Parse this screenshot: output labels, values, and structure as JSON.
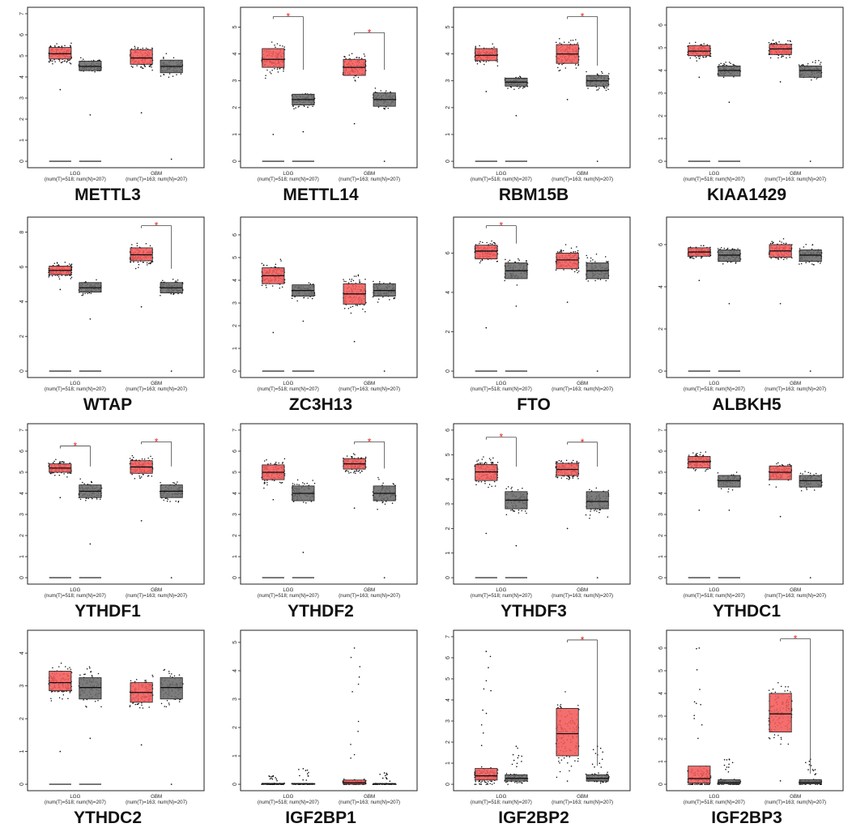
{
  "colors": {
    "tumor": "#f25a5a",
    "normal": "#6a6a6a",
    "star": "#e02020",
    "points": "#111111"
  },
  "chart_data": [
    {
      "type": "box",
      "title": "METTL3",
      "ylim": [
        0,
        7
      ],
      "yticks": [
        0,
        1,
        2,
        3,
        4,
        5,
        6,
        7
      ],
      "groups": [
        {
          "label": "LGG",
          "counts": "(num(T)=518; num(N)=207)",
          "tumor": {
            "q1": 4.85,
            "median": 5.1,
            "q3": 5.4,
            "min": 3.7,
            "max": 6.6,
            "min_out": 3.4
          },
          "normal": {
            "q1": 4.3,
            "median": 4.5,
            "q3": 4.75,
            "min": 3.3,
            "max": 5.8,
            "min_out": 2.2
          },
          "significant": false
        },
        {
          "label": "GBM",
          "counts": "(num(T)=163; num(N)=207)",
          "tumor": {
            "q1": 4.6,
            "median": 4.9,
            "q3": 5.3,
            "min": 3.5,
            "max": 6.5,
            "min_out": 2.3
          },
          "normal": {
            "q1": 4.2,
            "median": 4.5,
            "q3": 4.8,
            "min": 3.3,
            "max": 5.7,
            "min_out": 0.1
          },
          "significant": false
        }
      ]
    },
    {
      "type": "box",
      "title": "METTL14",
      "ylim": [
        0,
        5.5
      ],
      "yticks": [
        0,
        1,
        2,
        3,
        4,
        5
      ],
      "groups": [
        {
          "label": "LGG",
          "counts": "(num(T)=518; num(N)=207)",
          "tumor": {
            "q1": 3.5,
            "median": 3.8,
            "q3": 4.2,
            "min": 2.2,
            "max": 5.2,
            "min_out": 1.0
          },
          "normal": {
            "q1": 2.1,
            "median": 2.3,
            "q3": 2.5,
            "min": 1.3,
            "max": 3.35,
            "min_out": 1.1
          },
          "significant": true
        },
        {
          "label": "GBM",
          "counts": "(num(T)=163; num(N)=207)",
          "tumor": {
            "q1": 3.2,
            "median": 3.5,
            "q3": 3.8,
            "min": 2.1,
            "max": 4.6,
            "min_out": 1.4
          },
          "normal": {
            "q1": 2.05,
            "median": 2.3,
            "q3": 2.55,
            "min": 1.3,
            "max": 3.35,
            "min_out": 0.0
          },
          "significant": true
        }
      ]
    },
    {
      "type": "box",
      "title": "RBM15B",
      "ylim": [
        0,
        5.5
      ],
      "yticks": [
        0,
        1,
        2,
        3,
        4,
        5
      ],
      "groups": [
        {
          "label": "LGG",
          "counts": "(num(T)=518; num(N)=207)",
          "tumor": {
            "q1": 3.75,
            "median": 3.95,
            "q3": 4.2,
            "min": 2.9,
            "max": 4.95,
            "min_out": 2.6
          },
          "normal": {
            "q1": 2.8,
            "median": 2.95,
            "q3": 3.1,
            "min": 2.3,
            "max": 3.5,
            "min_out": 1.7
          },
          "significant": false
        },
        {
          "label": "GBM",
          "counts": "(num(T)=163; num(N)=207)",
          "tumor": {
            "q1": 3.65,
            "median": 4.0,
            "q3": 4.35,
            "min": 2.5,
            "max": 5.2,
            "min_out": 2.3
          },
          "normal": {
            "q1": 2.8,
            "median": 3.0,
            "q3": 3.2,
            "min": 2.3,
            "max": 3.5,
            "min_out": 0.0
          },
          "significant": true
        }
      ]
    },
    {
      "type": "box",
      "title": "KIAA1429",
      "ylim": [
        0,
        6.5
      ],
      "yticks": [
        0,
        1,
        2,
        3,
        4,
        5,
        6
      ],
      "groups": [
        {
          "label": "LGG",
          "counts": "(num(T)=518; num(N)=207)",
          "tumor": {
            "q1": 4.65,
            "median": 4.85,
            "q3": 5.1,
            "min": 4.0,
            "max": 5.8,
            "min_out": 3.7
          },
          "normal": {
            "q1": 3.75,
            "median": 4.0,
            "q3": 4.2,
            "min": 3.1,
            "max": 4.8,
            "min_out": 2.6
          },
          "significant": false
        },
        {
          "label": "GBM",
          "counts": "(num(T)=163; num(N)=207)",
          "tumor": {
            "q1": 4.7,
            "median": 4.95,
            "q3": 5.15,
            "min": 4.0,
            "max": 5.8,
            "min_out": 3.5
          },
          "normal": {
            "q1": 3.7,
            "median": 4.0,
            "q3": 4.2,
            "min": 3.1,
            "max": 4.8,
            "min_out": 0.0
          },
          "significant": false
        }
      ]
    },
    {
      "type": "box",
      "title": "WTAP",
      "ylim": [
        0,
        8.5
      ],
      "yticks": [
        0,
        2,
        4,
        6,
        8
      ],
      "groups": [
        {
          "label": "LGG",
          "counts": "(num(T)=518; num(N)=207)",
          "tumor": {
            "q1": 5.55,
            "median": 5.8,
            "q3": 6.05,
            "min": 4.9,
            "max": 6.7,
            "min_out": 4.7
          },
          "normal": {
            "q1": 4.55,
            "median": 4.8,
            "q3": 5.1,
            "min": 3.9,
            "max": 5.8,
            "min_out": 3.0
          },
          "significant": false
        },
        {
          "label": "GBM",
          "counts": "(num(T)=163; num(N)=207)",
          "tumor": {
            "q1": 6.35,
            "median": 6.7,
            "q3": 7.1,
            "min": 5.3,
            "max": 8.2,
            "min_out": 3.7
          },
          "normal": {
            "q1": 4.5,
            "median": 4.8,
            "q3": 5.1,
            "min": 3.8,
            "max": 5.8,
            "min_out": 0.0
          },
          "significant": true
        }
      ]
    },
    {
      "type": "box",
      "title": "ZC3H13",
      "ylim": [
        0,
        6.5
      ],
      "yticks": [
        0,
        1,
        2,
        3,
        4,
        5,
        6
      ],
      "groups": [
        {
          "label": "LGG",
          "counts": "(num(T)=518; num(N)=207)",
          "tumor": {
            "q1": 3.85,
            "median": 4.2,
            "q3": 4.55,
            "min": 2.8,
            "max": 5.5,
            "min_out": 1.7
          },
          "normal": {
            "q1": 3.3,
            "median": 3.55,
            "q3": 3.8,
            "min": 2.6,
            "max": 4.6,
            "min_out": 2.2
          },
          "significant": false
        },
        {
          "label": "GBM",
          "counts": "(num(T)=163; num(N)=207)",
          "tumor": {
            "q1": 2.95,
            "median": 3.4,
            "q3": 3.85,
            "min": 1.5,
            "max": 5.1,
            "min_out": 1.3
          },
          "normal": {
            "q1": 3.3,
            "median": 3.55,
            "q3": 3.85,
            "min": 2.6,
            "max": 4.6,
            "min_out": 0.0
          },
          "significant": false
        }
      ]
    },
    {
      "type": "box",
      "title": "FTO",
      "ylim": [
        0,
        7.5
      ],
      "yticks": [
        0,
        2,
        4,
        6
      ],
      "groups": [
        {
          "label": "LGG",
          "counts": "(num(T)=518; num(N)=207)",
          "tumor": {
            "q1": 5.7,
            "median": 6.1,
            "q3": 6.4,
            "min": 4.9,
            "max": 7.2,
            "min_out": 2.2
          },
          "normal": {
            "q1": 4.7,
            "median": 5.1,
            "q3": 5.5,
            "min": 3.8,
            "max": 6.4,
            "min_out": 3.3
          },
          "significant": true
        },
        {
          "label": "GBM",
          "counts": "(num(T)=163; num(N)=207)",
          "tumor": {
            "q1": 5.2,
            "median": 5.65,
            "q3": 6.0,
            "min": 4.2,
            "max": 6.8,
            "min_out": 3.5
          },
          "normal": {
            "q1": 4.7,
            "median": 5.1,
            "q3": 5.5,
            "min": 3.8,
            "max": 6.4,
            "min_out": 0.0
          },
          "significant": false
        }
      ]
    },
    {
      "type": "box",
      "title": "ALBKH5",
      "ylim": [
        0,
        7
      ],
      "yticks": [
        0,
        2,
        4,
        6
      ],
      "groups": [
        {
          "label": "LGG",
          "counts": "(num(T)=518; num(N)=207)",
          "tumor": {
            "q1": 5.45,
            "median": 5.65,
            "q3": 5.85,
            "min": 4.9,
            "max": 6.4,
            "min_out": 4.3
          },
          "normal": {
            "q1": 5.2,
            "median": 5.5,
            "q3": 5.75,
            "min": 4.5,
            "max": 6.3,
            "min_out": 3.2
          },
          "significant": false
        },
        {
          "label": "GBM",
          "counts": "(num(T)=163; num(N)=207)",
          "tumor": {
            "q1": 5.4,
            "median": 5.7,
            "q3": 6.0,
            "min": 4.7,
            "max": 6.7,
            "min_out": 3.2
          },
          "normal": {
            "q1": 5.2,
            "median": 5.5,
            "q3": 5.75,
            "min": 4.5,
            "max": 6.3,
            "min_out": 0.0
          },
          "significant": false
        }
      ]
    },
    {
      "type": "box",
      "title": "YTHDF1",
      "ylim": [
        0,
        7
      ],
      "yticks": [
        0,
        1,
        2,
        3,
        4,
        5,
        6,
        7
      ],
      "groups": [
        {
          "label": "LGG",
          "counts": "(num(T)=518; num(N)=207)",
          "tumor": {
            "q1": 5.0,
            "median": 5.2,
            "q3": 5.4,
            "min": 4.4,
            "max": 6.0,
            "min_out": 3.8
          },
          "normal": {
            "q1": 3.8,
            "median": 4.1,
            "q3": 4.4,
            "min": 3.1,
            "max": 5.2,
            "min_out": 1.6
          },
          "significant": true
        },
        {
          "label": "GBM",
          "counts": "(num(T)=163; num(N)=207)",
          "tumor": {
            "q1": 4.95,
            "median": 5.25,
            "q3": 5.55,
            "min": 4.3,
            "max": 6.2,
            "min_out": 2.7
          },
          "normal": {
            "q1": 3.8,
            "median": 4.1,
            "q3": 4.4,
            "min": 3.1,
            "max": 5.2,
            "min_out": 0.0
          },
          "significant": true
        }
      ]
    },
    {
      "type": "box",
      "title": "YTHDF2",
      "ylim": [
        0,
        7
      ],
      "yticks": [
        0,
        1,
        2,
        3,
        4,
        5,
        6,
        7
      ],
      "groups": [
        {
          "label": "LGG",
          "counts": "(num(T)=518; num(N)=207)",
          "tumor": {
            "q1": 4.65,
            "median": 5.0,
            "q3": 5.35,
            "min": 3.8,
            "max": 6.3,
            "min_out": 3.7
          },
          "normal": {
            "q1": 3.65,
            "median": 4.0,
            "q3": 4.35,
            "min": 2.8,
            "max": 5.1,
            "min_out": 1.2
          },
          "significant": false
        },
        {
          "label": "GBM",
          "counts": "(num(T)=163; num(N)=207)",
          "tumor": {
            "q1": 5.15,
            "median": 5.4,
            "q3": 5.65,
            "min": 4.5,
            "max": 6.2,
            "min_out": 3.3
          },
          "normal": {
            "q1": 3.65,
            "median": 4.0,
            "q3": 4.35,
            "min": 2.8,
            "max": 5.1,
            "min_out": 0.0
          },
          "significant": true
        }
      ]
    },
    {
      "type": "box",
      "title": "YTHDF3",
      "ylim": [
        0,
        6
      ],
      "yticks": [
        0,
        1,
        2,
        3,
        4,
        5,
        6
      ],
      "groups": [
        {
          "label": "LGG",
          "counts": "(num(T)=518; num(N)=207)",
          "tumor": {
            "q1": 3.95,
            "median": 4.3,
            "q3": 4.6,
            "min": 3.1,
            "max": 5.5,
            "min_out": 1.8
          },
          "normal": {
            "q1": 2.8,
            "median": 3.15,
            "q3": 3.5,
            "min": 2.1,
            "max": 4.45,
            "min_out": 1.3
          },
          "significant": true
        },
        {
          "label": "GBM",
          "counts": "(num(T)=163; num(N)=207)",
          "tumor": {
            "q1": 4.15,
            "median": 4.4,
            "q3": 4.65,
            "min": 3.5,
            "max": 5.3,
            "min_out": 2.0
          },
          "normal": {
            "q1": 2.8,
            "median": 3.1,
            "q3": 3.5,
            "min": 2.1,
            "max": 4.45,
            "min_out": 0.0
          },
          "significant": true
        }
      ]
    },
    {
      "type": "box",
      "title": "YTHDC1",
      "ylim": [
        0,
        7
      ],
      "yticks": [
        0,
        1,
        2,
        3,
        4,
        5,
        6,
        7
      ],
      "groups": [
        {
          "label": "LGG",
          "counts": "(num(T)=518; num(N)=207)",
          "tumor": {
            "q1": 5.2,
            "median": 5.5,
            "q3": 5.75,
            "min": 4.5,
            "max": 6.5,
            "min_out": 3.2
          },
          "normal": {
            "q1": 4.3,
            "median": 4.6,
            "q3": 4.85,
            "min": 3.7,
            "max": 5.6,
            "min_out": 3.2
          },
          "significant": false
        },
        {
          "label": "GBM",
          "counts": "(num(T)=163; num(N)=207)",
          "tumor": {
            "q1": 4.65,
            "median": 5.0,
            "q3": 5.3,
            "min": 3.7,
            "max": 6.2,
            "min_out": 2.9
          },
          "normal": {
            "q1": 4.3,
            "median": 4.6,
            "q3": 4.85,
            "min": 3.7,
            "max": 5.6,
            "min_out": 0.0
          },
          "significant": false
        }
      ]
    },
    {
      "type": "box",
      "title": "YTHDC2",
      "ylim": [
        0,
        4.5
      ],
      "yticks": [
        0,
        1,
        2,
        3,
        4
      ],
      "groups": [
        {
          "label": "LGG",
          "counts": "(num(T)=518; num(N)=207)",
          "tumor": {
            "q1": 2.85,
            "median": 3.1,
            "q3": 3.45,
            "min": 1.9,
            "max": 4.4,
            "min_out": 1.0
          },
          "normal": {
            "q1": 2.6,
            "median": 2.95,
            "q3": 3.25,
            "min": 1.7,
            "max": 4.2,
            "min_out": 1.4
          },
          "significant": false
        },
        {
          "label": "GBM",
          "counts": "(num(T)=163; num(N)=207)",
          "tumor": {
            "q1": 2.5,
            "median": 2.8,
            "q3": 3.1,
            "min": 1.6,
            "max": 4.1,
            "min_out": 1.2
          },
          "normal": {
            "q1": 2.6,
            "median": 2.95,
            "q3": 3.25,
            "min": 1.7,
            "max": 4.2,
            "min_out": 0.0
          },
          "significant": false
        }
      ]
    },
    {
      "type": "box",
      "title": "IGF2BP1",
      "ylim": [
        0,
        5.2
      ],
      "yticks": [
        0,
        1,
        2,
        3,
        4,
        5
      ],
      "groups": [
        {
          "label": "LGG",
          "counts": "(num(T)=518; num(N)=207)",
          "tumor": {
            "q1": 0.0,
            "median": 0.01,
            "q3": 0.03,
            "min": 0.0,
            "max": 0.1,
            "min_out": 0.0,
            "max_out": 0.3
          },
          "normal": {
            "q1": 0.0,
            "median": 0.01,
            "q3": 0.03,
            "min": 0.0,
            "max": 0.1,
            "min_out": 0.0,
            "max_out": 0.55
          },
          "significant": false
        },
        {
          "label": "GBM",
          "counts": "(num(T)=163; num(N)=207)",
          "tumor": {
            "q1": 0.0,
            "median": 0.05,
            "q3": 0.15,
            "min": 0.0,
            "max": 0.4,
            "min_out": 0.0,
            "max_out": 4.8
          },
          "normal": {
            "q1": 0.0,
            "median": 0.01,
            "q3": 0.03,
            "min": 0.0,
            "max": 0.1,
            "min_out": 0.0,
            "max_out": 0.4
          },
          "significant": false
        }
      ]
    },
    {
      "type": "box",
      "title": "IGF2BP2",
      "ylim": [
        0,
        7
      ],
      "yticks": [
        0,
        1,
        2,
        3,
        4,
        5,
        6,
        7
      ],
      "groups": [
        {
          "label": "LGG",
          "counts": "(num(T)=518; num(N)=207)",
          "tumor": {
            "q1": 0.2,
            "median": 0.4,
            "q3": 0.75,
            "min": 0.0,
            "max": 1.3,
            "min_out": 0.0,
            "max_out": 6.3
          },
          "normal": {
            "q1": 0.15,
            "median": 0.28,
            "q3": 0.45,
            "min": 0.0,
            "max": 0.8,
            "min_out": 0.0,
            "max_out": 1.8
          },
          "significant": false
        },
        {
          "label": "GBM",
          "counts": "(num(T)=163; num(N)=207)",
          "tumor": {
            "q1": 1.35,
            "median": 2.4,
            "q3": 3.6,
            "min": 0.2,
            "max": 6.6,
            "min_out": 0.15
          },
          "normal": {
            "q1": 0.15,
            "median": 0.28,
            "q3": 0.45,
            "min": 0.0,
            "max": 0.8,
            "min_out": 0.0,
            "max_out": 1.8
          },
          "significant": true
        }
      ]
    },
    {
      "type": "box",
      "title": "IGF2BP3",
      "ylim": [
        0,
        6.5
      ],
      "yticks": [
        0,
        1,
        2,
        3,
        4,
        5,
        6
      ],
      "groups": [
        {
          "label": "LGG",
          "counts": "(num(T)=518; num(N)=207)",
          "tumor": {
            "q1": 0.05,
            "median": 0.25,
            "q3": 0.8,
            "min": 0.0,
            "max": 1.8,
            "min_out": 0.0,
            "max_out": 6.0
          },
          "normal": {
            "q1": 0.02,
            "median": 0.08,
            "q3": 0.2,
            "min": 0.0,
            "max": 0.4,
            "min_out": 0.0,
            "max_out": 1.1
          },
          "significant": false
        },
        {
          "label": "GBM",
          "counts": "(num(T)=163; num(N)=207)",
          "tumor": {
            "q1": 2.3,
            "median": 3.1,
            "q3": 4.0,
            "min": 0.2,
            "max": 6.2,
            "min_out": 0.15
          },
          "normal": {
            "q1": 0.02,
            "median": 0.08,
            "q3": 0.2,
            "min": 0.0,
            "max": 0.4,
            "min_out": 0.0,
            "max_out": 1.1
          },
          "significant": true
        }
      ]
    }
  ]
}
